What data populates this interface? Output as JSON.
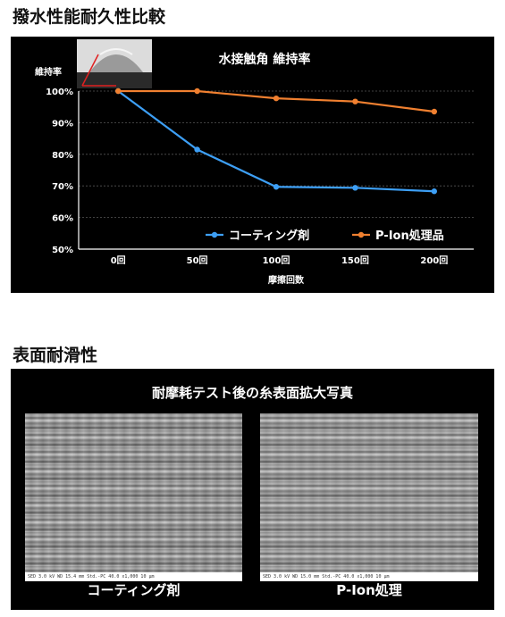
{
  "section1": {
    "title": "撥水性能耐久性比較"
  },
  "section2": {
    "title": "表面耐滑性"
  },
  "chart_data": {
    "type": "line",
    "title": "水接触角 維持率",
    "ylabel": "維持率",
    "xlabel": "摩擦回数",
    "categories": [
      "0回",
      "50回",
      "100回",
      "150回",
      "200回"
    ],
    "yticks": [
      "100%",
      "90%",
      "80%",
      "70%",
      "60%",
      "50%"
    ],
    "ylim": [
      50,
      100
    ],
    "grid": true,
    "legend_position": "bottom-right",
    "series": [
      {
        "name": "コーティング剤",
        "color": "#3d9ff5",
        "values": [
          100,
          81.5,
          69.7,
          69.4,
          68.3
        ]
      },
      {
        "name": "P-Ion処理品",
        "color": "#f08030",
        "values": [
          100,
          100,
          97.7,
          96.7,
          93.5
        ]
      }
    ]
  },
  "surface": {
    "title": "耐摩耗テスト後の糸表面拡大写真",
    "left_label": "コーティング剤",
    "right_label": "P-Ion処理",
    "left_scalebar": "SED  3.0 kV  WD 15.4 mm  Std.-PC 40.0   x1,000        10 μm",
    "right_scalebar": "SED  3.0 kV  WD 15.0 mm  Std.-PC 40.0   x1,000        10 μm"
  }
}
